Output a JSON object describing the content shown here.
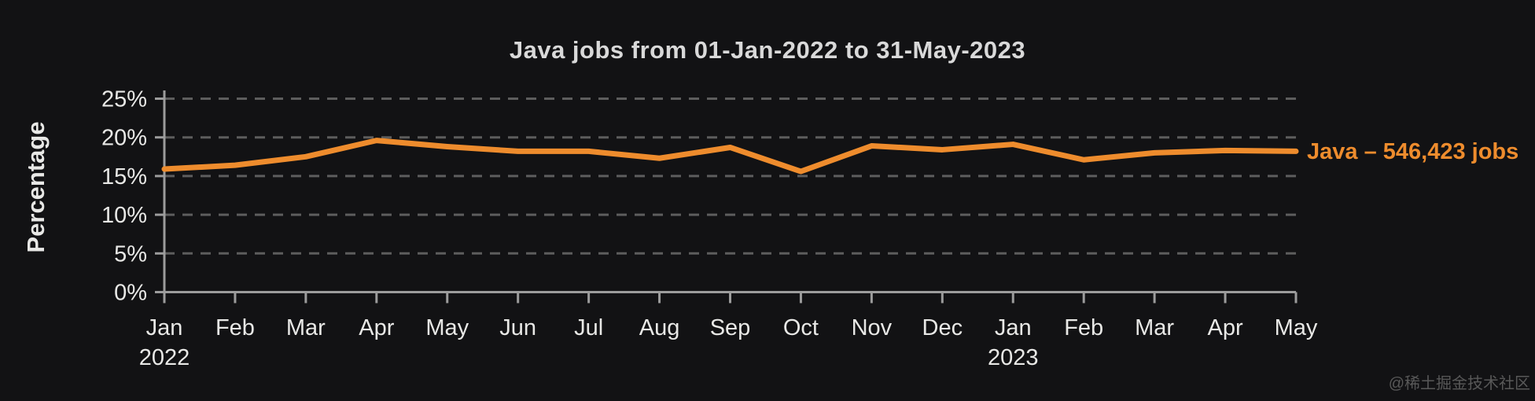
{
  "chart_data": {
    "type": "line",
    "title": "Java jobs from 01-Jan-2022 to 31-May-2023",
    "xlabel": "",
    "ylabel": "Percentage",
    "categories": [
      "Jan",
      "Feb",
      "Mar",
      "Apr",
      "May",
      "Jun",
      "Jul",
      "Aug",
      "Sep",
      "Oct",
      "Nov",
      "Dec",
      "Jan",
      "Feb",
      "Mar",
      "Apr",
      "May"
    ],
    "year_marks": [
      {
        "index": 0,
        "label": "2022"
      },
      {
        "index": 12,
        "label": "2023"
      }
    ],
    "series": [
      {
        "name": "Java",
        "label": "Java – 546,423 jobs",
        "color": "#EE8C2D",
        "values": [
          15.9,
          16.4,
          17.5,
          19.6,
          18.8,
          18.2,
          18.2,
          17.3,
          18.7,
          15.6,
          18.9,
          18.4,
          19.1,
          17.1,
          18.0,
          18.3,
          18.2
        ]
      }
    ],
    "y_ticks": [
      0,
      5,
      10,
      15,
      20,
      25
    ],
    "y_tick_suffix": "%",
    "ylim": [
      0,
      25
    ],
    "grid": "horizontal-dashed",
    "legend_position": "right-of-line-end"
  },
  "watermark": {
    "text": "@稀土掘金技术社区"
  },
  "colors": {
    "background": "#121214",
    "line": "#EE8C2D",
    "grid": "#5d5d5d",
    "axis": "#9c9c9c",
    "tick_text": "#e8e8e6",
    "title_text": "#d9d9d9",
    "watermark_text": "#585858"
  }
}
